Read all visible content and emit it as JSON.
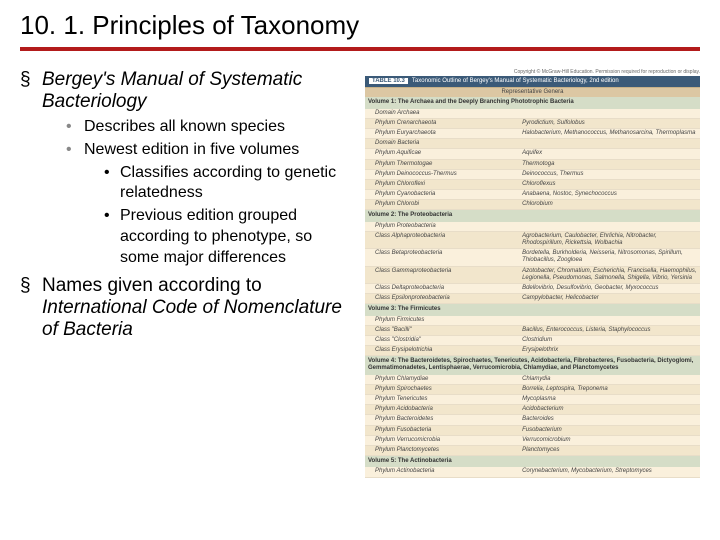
{
  "title": "10. 1. Principles of Taxonomy",
  "accent_color": "#b31b1b",
  "text": {
    "b1_bergey": "Bergey's Manual of Systematic Bacteriology",
    "b2_describes": "Describes all known species",
    "b2_newest": "Newest edition in five volumes",
    "b3_classifies": "Classifies according to genetic relatedness",
    "b3_previous": "Previous edition grouped according to phenotype, so some major differences",
    "b1_names_a": "Names given according to ",
    "b1_names_b": "International Code of Nomenclature of Bacteria"
  },
  "table": {
    "copyright": "Copyright © McGraw-Hill Education. Permission required for reproduction or display.",
    "header_label": "TABLE 10.3",
    "header_title": "Taxonomic Outline of Bergey's Manual of Systematic Bacteriology, 2nd edition",
    "sub_header": "Representative Genera",
    "header_bg": "#3b5a78",
    "sub_bg": "#dcc7a3",
    "vol_bg": "#d5ddc7",
    "row_bg_a": "#faf0dc",
    "row_bg_b": "#f2e6cc",
    "volumes": [
      {
        "title": "Volume 1: The Archaea and the Deeply Branching Phototrophic Bacteria",
        "rows": [
          {
            "l": "Domain Archaea",
            "r": ""
          },
          {
            "l": "Phylum Crenarchaeota",
            "r": "Pyrodictium, Sulfolobus"
          },
          {
            "l": "Phylum Euryarchaeota",
            "r": "Halobacterium, Methanococcus, Methanosarcina, Thermoplasma"
          },
          {
            "l": "Domain Bacteria",
            "r": ""
          },
          {
            "l": "Phylum Aquificae",
            "r": "Aquifex"
          },
          {
            "l": "Phylum Thermotogae",
            "r": "Thermotoga"
          },
          {
            "l": "Phylum Deinococcus-Thermus",
            "r": "Deinococcus, Thermus"
          },
          {
            "l": "Phylum Chloroflexi",
            "r": "Chloroflexus"
          },
          {
            "l": "Phylum Cyanobacteria",
            "r": "Anabaena, Nostoc, Synechococcus"
          },
          {
            "l": "Phylum Chlorobi",
            "r": "Chlorobium"
          }
        ]
      },
      {
        "title": "Volume 2: The Proteobacteria",
        "rows": [
          {
            "l": "Phylum Proteobacteria",
            "r": ""
          },
          {
            "l": "Class Alphaproteobacteria",
            "r": "Agrobacterium, Caulobacter, Ehrlichia, Nitrobacter, Rhodospirillum, Rickettsia, Wolbachia"
          },
          {
            "l": "Class Betaproteobacteria",
            "r": "Bordetella, Burkholderia, Neisseria, Nitrosomonas, Spirillum, Thiobacillus, Zoogloea"
          },
          {
            "l": "Class Gammaproteobacteria",
            "r": "Azotobacter, Chromatium, Escherichia, Francisella, Haemophilus, Legionella, Pseudomonas, Salmonella, Shigella, Vibrio, Yersinia"
          },
          {
            "l": "Class Deltaproteobacteria",
            "r": "Bdellovibrio, Desulfovibrio, Geobacter, Myxococcus"
          },
          {
            "l": "Class Epsilonproteobacteria",
            "r": "Campylobacter, Helicobacter"
          }
        ]
      },
      {
        "title": "Volume 3: The Firmicutes",
        "rows": [
          {
            "l": "Phylum Firmicutes",
            "r": ""
          },
          {
            "l": "Class \"Bacilli\"",
            "r": "Bacillus, Enterococcus, Listeria, Staphylococcus"
          },
          {
            "l": "Class \"Clostridia\"",
            "r": "Clostridium"
          },
          {
            "l": "Class Erysipelotrichia",
            "r": "Erysipelothrix"
          }
        ]
      },
      {
        "title": "Volume 4: The Bacteroidetes, Spirochaetes, Tenericutes, Acidobacteria, Fibrobacteres, Fusobacteria, Dictyoglomi, Gemmatimonadetes, Lentisphaerae, Verrucomicrobia, Chlamydiae, and Planctomycetes",
        "rows": [
          {
            "l": "Phylum Chlamydiae",
            "r": "Chlamydia"
          },
          {
            "l": "Phylum Spirochaetes",
            "r": "Borrelia, Leptospira, Treponema"
          },
          {
            "l": "Phylum Tenericutes",
            "r": "Mycoplasma"
          },
          {
            "l": "Phylum Acidobacteria",
            "r": "Acidobacterium"
          },
          {
            "l": "Phylum Bacteroidetes",
            "r": "Bacteroides"
          },
          {
            "l": "Phylum Fusobacteria",
            "r": "Fusobacterium"
          },
          {
            "l": "Phylum Verrucomicrobia",
            "r": "Verrucomicrobium"
          },
          {
            "l": "Phylum Planctomycetes",
            "r": "Planctomyces"
          }
        ]
      },
      {
        "title": "Volume 5: The Actinobacteria",
        "rows": [
          {
            "l": "Phylum Actinobacteria",
            "r": "Corynebacterium, Mycobacterium, Streptomyces"
          }
        ]
      }
    ]
  }
}
